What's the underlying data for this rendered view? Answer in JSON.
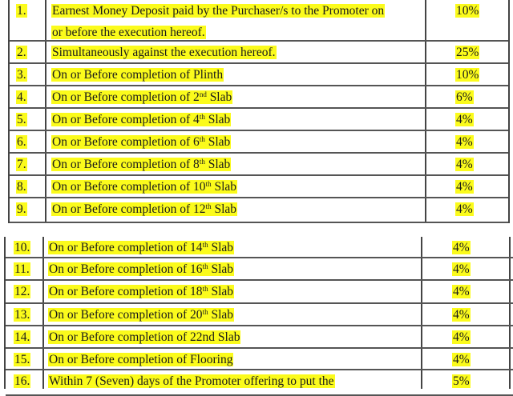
{
  "table1": {
    "rows": [
      {
        "no": "1.",
        "lines": [
          "Earnest Money Deposit paid by the Purchaser/s to the Promoter on",
          "or before the execution hereof."
        ],
        "pct": "10%"
      },
      {
        "no": "2.",
        "text": "Simultaneously against the execution hereof.",
        "pct": "25%"
      },
      {
        "no": "3.",
        "text": "On or Before completion of Plinth",
        "pct": "10%"
      },
      {
        "no": "4.",
        "text": "On or Before completion of 2",
        "sup": "nd",
        "after": " Slab",
        "pct": "6%"
      },
      {
        "no": "5.",
        "text": "On or Before completion of 4",
        "sup": "th",
        "after": " Slab",
        "pct": "4%"
      },
      {
        "no": "6.",
        "text": "On or Before completion of 6",
        "sup": "th",
        "after": " Slab",
        "pct": "4%"
      },
      {
        "no": "7.",
        "text": "On or Before completion of 8",
        "sup": "th",
        "after": " Slab",
        "pct": "4%"
      },
      {
        "no": "8.",
        "text": "On or Before completion of 10",
        "sup": "th",
        "after": " Slab",
        "pct": "4%"
      },
      {
        "no": "9.",
        "text": "On or Before completion of 12",
        "sup": "th",
        "after": " Slab",
        "pct": "4%"
      }
    ]
  },
  "table2": {
    "rows": [
      {
        "no": "10.",
        "text": "On or Before completion of 14",
        "sup": "th",
        "after": " Slab",
        "pct": "4%"
      },
      {
        "no": "11.",
        "text": "On or Before completion of 16",
        "sup": "th",
        "after": " Slab",
        "pct": "4%"
      },
      {
        "no": "12.",
        "text": "On or Before completion of 18",
        "sup": "th",
        "after": " Slab",
        "pct": "4%"
      },
      {
        "no": "13.",
        "text": "On or Before completion of 20",
        "sup": "th",
        "after": " Slab",
        "pct": "4%"
      },
      {
        "no": "14.",
        "text": "On or Before completion of 22nd Slab",
        "pct": "4%"
      },
      {
        "no": "15.",
        "text": "On or Before completion of Flooring",
        "pct": "4%"
      },
      {
        "no": "16.",
        "text": "Within 7 (Seven) days of the Promoter offering to put the",
        "pct": "5%"
      }
    ]
  },
  "highlight_color": "#fbfb1c"
}
